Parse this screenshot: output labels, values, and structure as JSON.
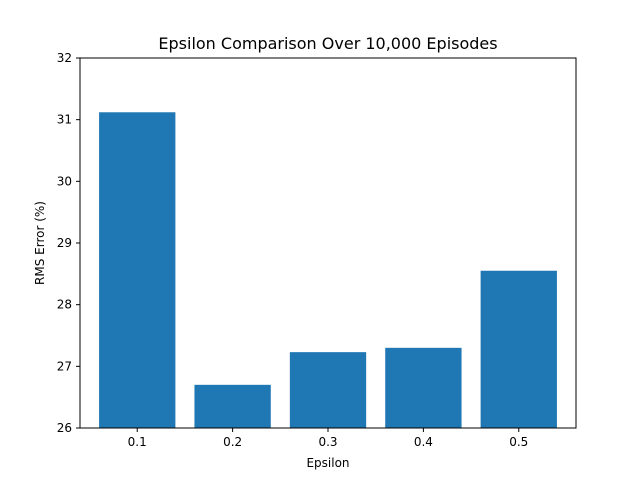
{
  "chart_data": {
    "type": "bar",
    "title": "Epsilon Comparison Over 10,000 Episodes",
    "xlabel": "Epsilon",
    "ylabel": "RMS Error (%)",
    "categories": [
      "0.1",
      "0.2",
      "0.3",
      "0.4",
      "0.5"
    ],
    "values": [
      31.12,
      26.7,
      27.23,
      27.3,
      28.55
    ],
    "ylim": [
      26,
      32
    ],
    "yticks": [
      "26",
      "27",
      "28",
      "29",
      "30",
      "31",
      "32"
    ],
    "bar_color": "#1f77b4",
    "grid": false,
    "legend": "none"
  }
}
